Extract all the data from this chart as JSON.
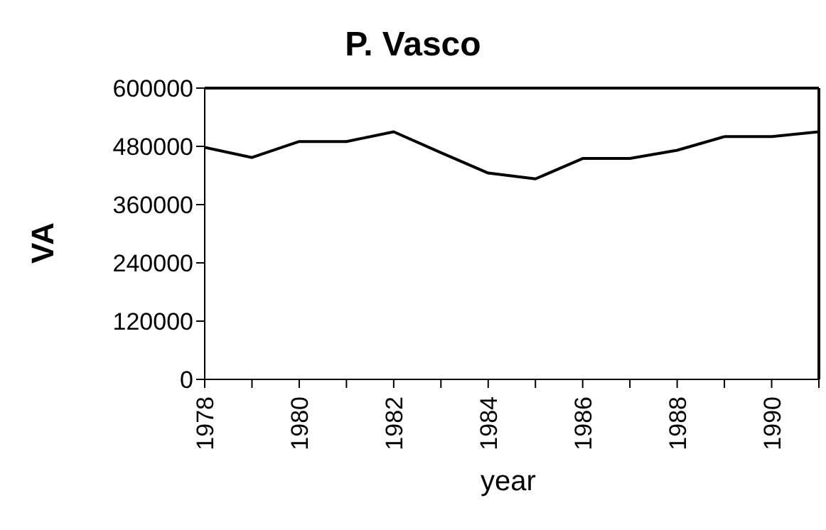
{
  "chart_data": {
    "type": "line",
    "title": "P. Vasco",
    "xlabel": "year",
    "ylabel": "VA",
    "x": [
      1978,
      1979,
      1980,
      1981,
      1982,
      1983,
      1984,
      1985,
      1986,
      1987,
      1988,
      1989,
      1990,
      1991
    ],
    "series": [
      {
        "color": "#000000",
        "values": [
          478000,
          457000,
          490000,
          490000,
          510000,
          467000,
          425000,
          413000,
          455000,
          455000,
          472000,
          500000,
          500000,
          510000
        ]
      }
    ],
    "xlim": [
      1978,
      1991
    ],
    "xticks": [
      1978,
      {
        "value": 1979,
        "label": null
      },
      1980,
      {
        "value": 1981,
        "label": null
      },
      1982,
      {
        "value": 1983,
        "label": null
      },
      1984,
      {
        "value": 1985,
        "label": null
      },
      1986,
      {
        "value": 1987,
        "label": null
      },
      1988,
      {
        "value": 1989,
        "label": null
      },
      1990,
      {
        "value": 1991,
        "label": null
      }
    ],
    "ylim": [
      0,
      600000
    ],
    "yticks": [
      0,
      120000,
      240000,
      360000,
      480000,
      600000
    ],
    "grid": false,
    "legend": false,
    "marker": "none",
    "line_style": "solid"
  }
}
